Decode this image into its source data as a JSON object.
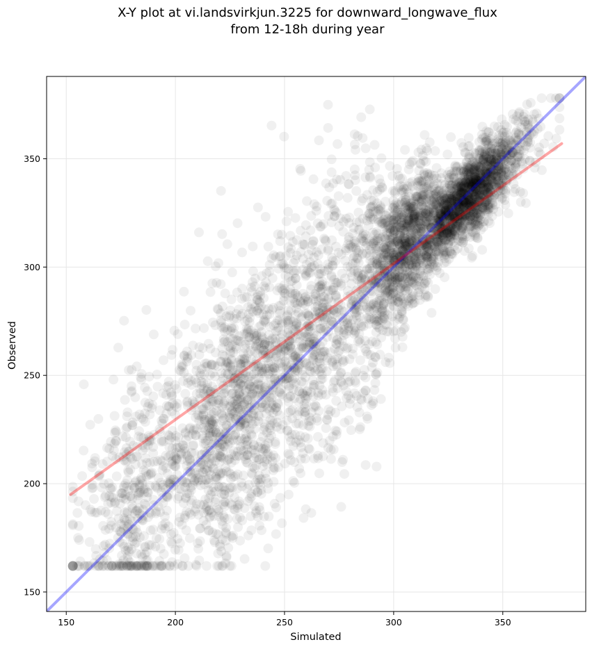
{
  "chart_data": {
    "type": "scatter",
    "title_line1": "X-Y plot at vi.landsvirkjun.3225 for downward_longwave_flux",
    "title_line2": "from 12-18h during year",
    "xlabel": "Simulated",
    "ylabel": "Observed",
    "xlim": [
      141,
      388
    ],
    "ylim": [
      141,
      388
    ],
    "xticks": [
      150,
      200,
      250,
      300,
      350
    ],
    "yticks": [
      150,
      200,
      250,
      300,
      350
    ],
    "grid": true,
    "point_color": "#000000",
    "point_alpha": 0.06,
    "point_count": 5000,
    "fit_line": {
      "x": [
        152,
        377
      ],
      "y": [
        195,
        357
      ],
      "color": "#ff0000"
    },
    "identity_line": {
      "x": [
        141,
        388
      ],
      "y": [
        141,
        388
      ],
      "color": "#0000ff"
    }
  }
}
